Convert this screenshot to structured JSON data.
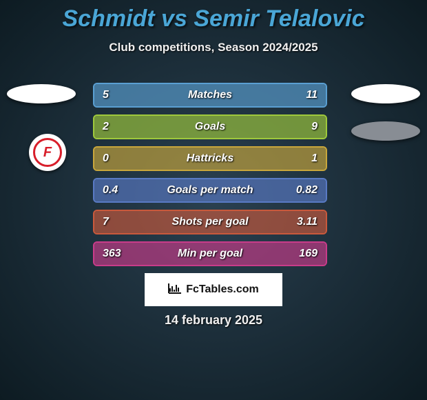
{
  "title": "Schmidt vs Semir Telalovic",
  "subtitle": "Club competitions, Season 2024/2025",
  "date": "14 february 2025",
  "logo_text": "FcTables.com",
  "badge_text": "F",
  "bar_colors": [
    "#5a9fd2",
    "#9fc93c",
    "#c9a73c",
    "#597ac4",
    "#c9593c",
    "#c93c8a"
  ],
  "rows": [
    {
      "label": "Matches",
      "left": "5",
      "right": "11",
      "left_pct": 31,
      "right_pct": 69
    },
    {
      "label": "Goals",
      "left": "2",
      "right": "9",
      "left_pct": 18,
      "right_pct": 82
    },
    {
      "label": "Hattricks",
      "left": "0",
      "right": "1",
      "left_pct": 0,
      "right_pct": 100
    },
    {
      "label": "Goals per match",
      "left": "0.4",
      "right": "0.82",
      "left_pct": 33,
      "right_pct": 67
    },
    {
      "label": "Shots per goal",
      "left": "7",
      "right": "3.11",
      "left_pct": 69,
      "right_pct": 31
    },
    {
      "label": "Min per goal",
      "left": "363",
      "right": "169",
      "left_pct": 68,
      "right_pct": 32
    }
  ],
  "text_color": "#ffffff",
  "title_color": "#4aa6d6"
}
